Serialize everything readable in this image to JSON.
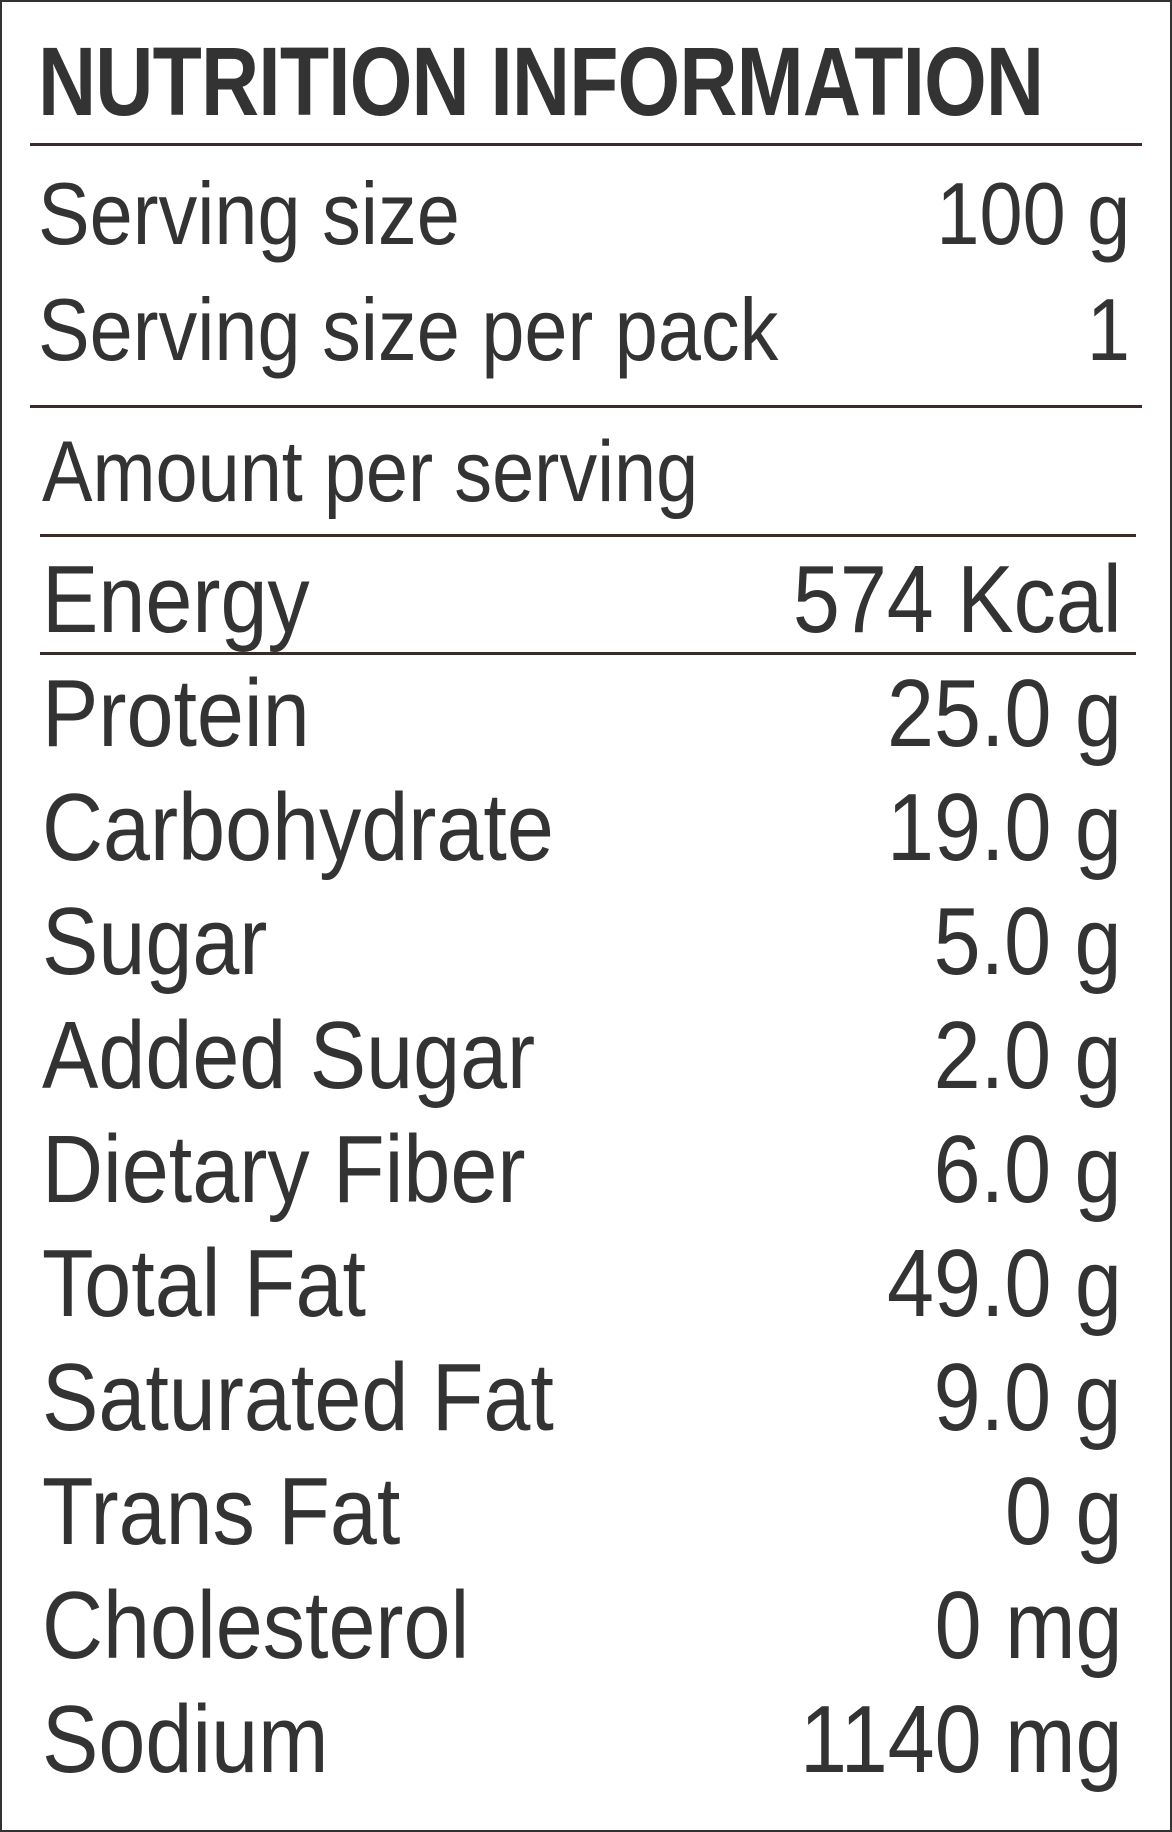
{
  "title": "NUTRITION INFORMATION",
  "serving": {
    "size_label": "Serving size",
    "size_value": "100 g",
    "per_pack_label": "Serving size per pack",
    "per_pack_value": "1"
  },
  "amount_header": "Amount per serving",
  "energy": {
    "label": "Energy",
    "value": "574 Kcal"
  },
  "nutrients": [
    {
      "label": "Protein",
      "value": "25.0 g"
    },
    {
      "label": "Carbohydrate",
      "value": "19.0  g"
    },
    {
      "label": "Sugar",
      "value": "5.0 g"
    },
    {
      "label": "Added Sugar",
      "value": "2.0 g"
    },
    {
      "label": "Dietary Fiber",
      "value": "6.0 g"
    },
    {
      "label": "Total Fat",
      "value": "49.0 g"
    },
    {
      "label": "Saturated Fat",
      "value": "9.0 g"
    },
    {
      "label": "Trans Fat",
      "value": "0 g"
    },
    {
      "label": "Cholesterol",
      "value": "0 mg"
    },
    {
      "label": "Sodium",
      "value": "1140 mg"
    }
  ]
}
